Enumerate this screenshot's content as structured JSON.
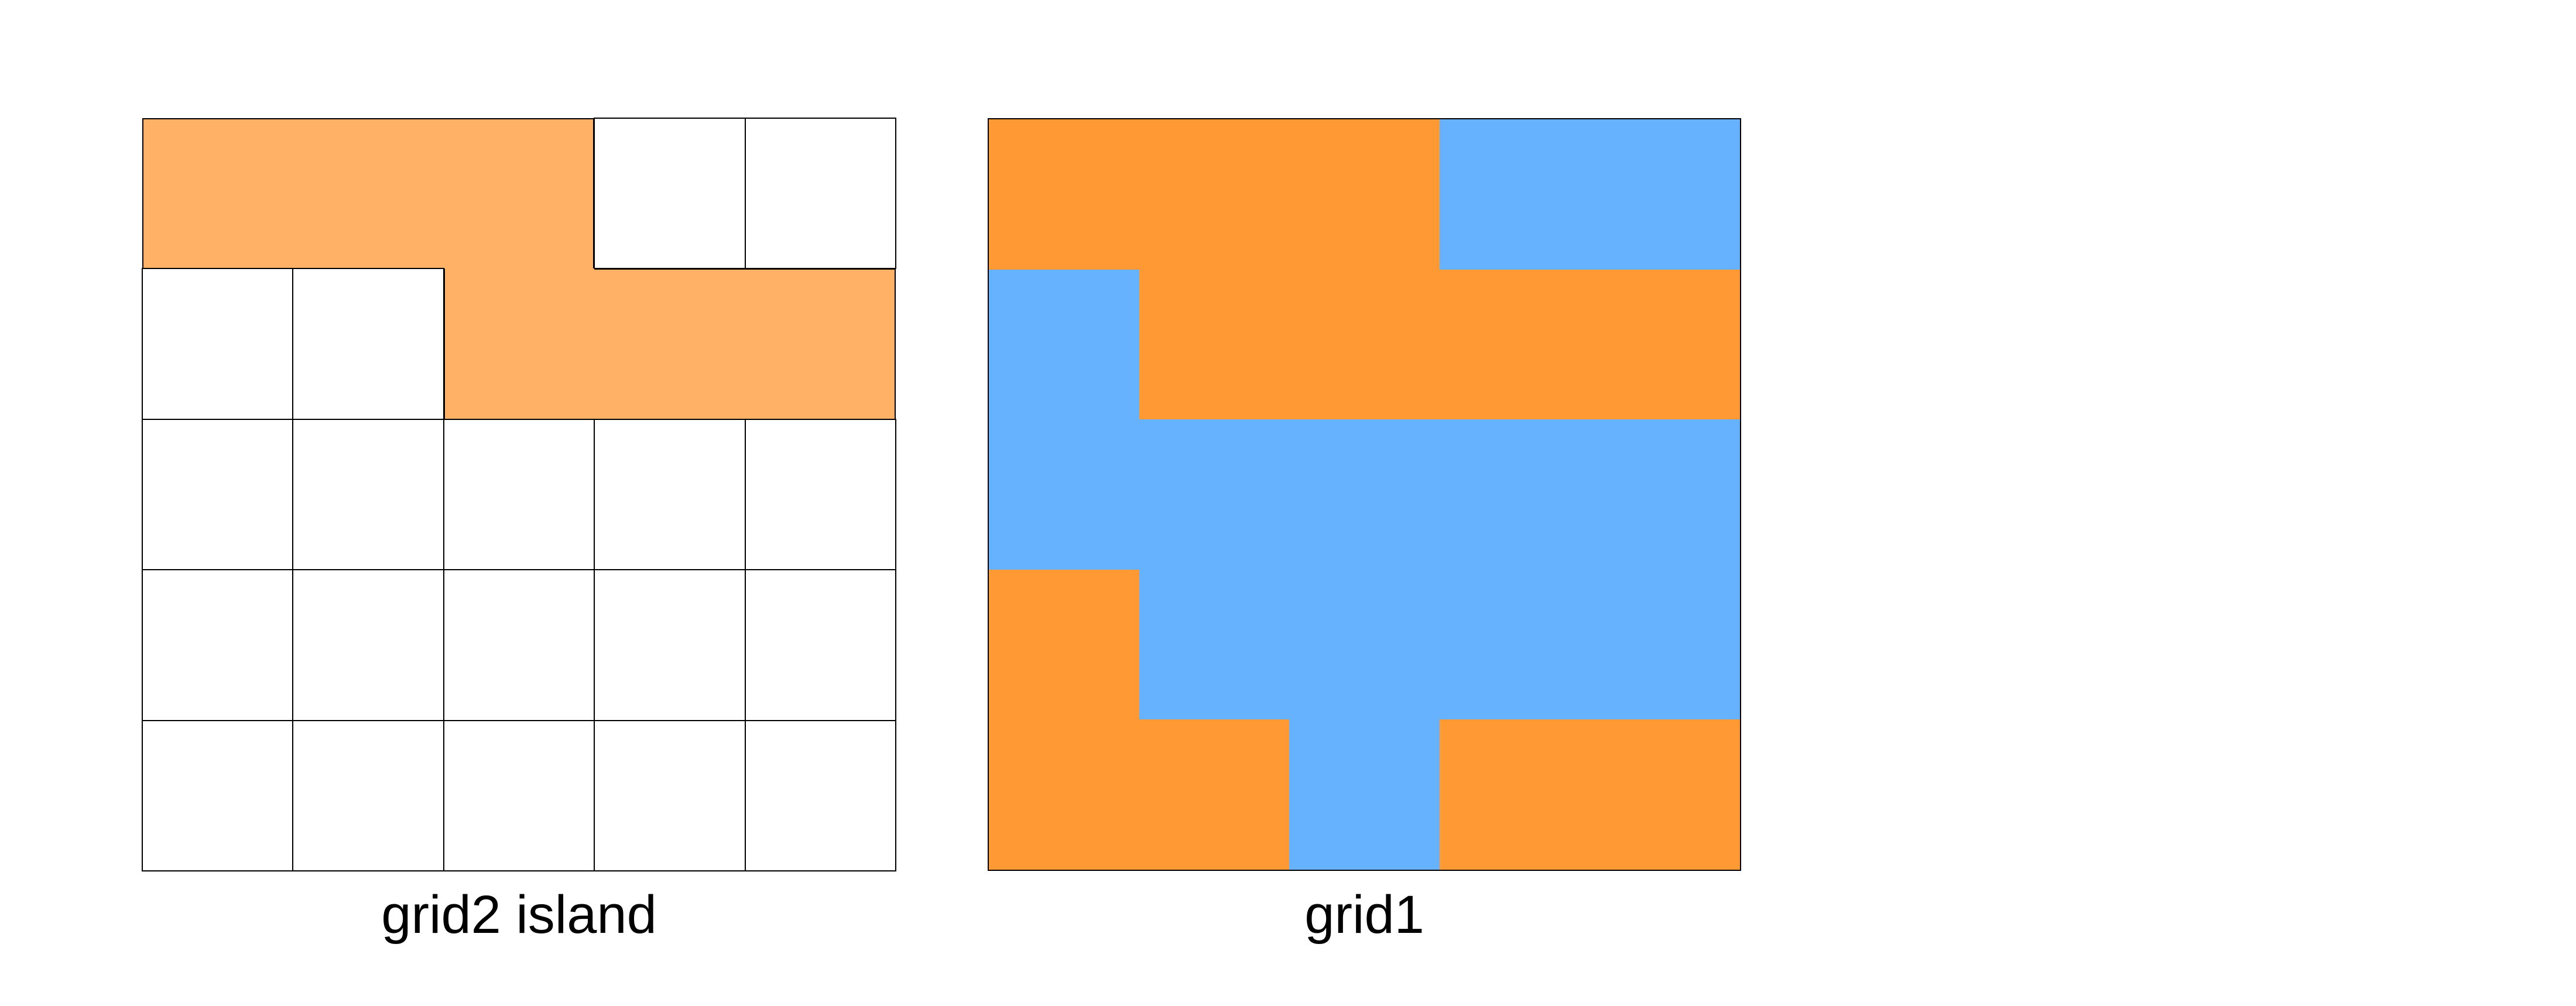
{
  "colors": {
    "island": "#FFB266",
    "empty": "#FFFFFF",
    "land": "#FF9933",
    "water": "#66B2FF"
  },
  "grid2": {
    "caption": "grid2 island",
    "rows": [
      [
        1,
        1,
        1,
        0,
        0
      ],
      [
        0,
        0,
        1,
        1,
        1
      ],
      [
        0,
        0,
        0,
        0,
        0
      ],
      [
        0,
        0,
        0,
        0,
        0
      ],
      [
        0,
        0,
        0,
        0,
        0
      ]
    ]
  },
  "grid1": {
    "caption": "grid1",
    "rows": [
      [
        1,
        1,
        1,
        0,
        0
      ],
      [
        0,
        1,
        1,
        1,
        1
      ],
      [
        0,
        0,
        0,
        0,
        0
      ],
      [
        1,
        0,
        0,
        0,
        0
      ],
      [
        1,
        1,
        0,
        1,
        1
      ]
    ]
  }
}
